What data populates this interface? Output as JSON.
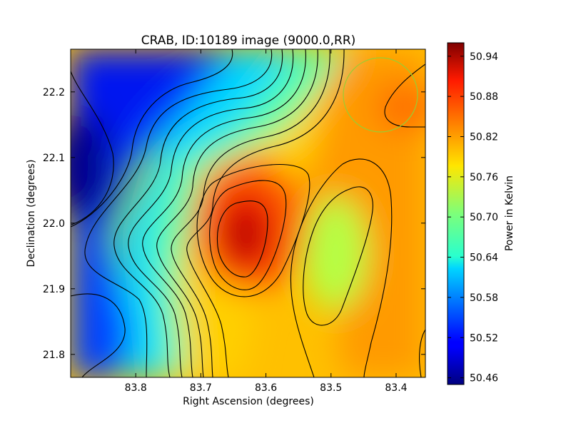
{
  "chart_data": {
    "type": "heatmap",
    "title": "CRAB, ID:10189 image (9000.0,RR)",
    "xlabel": "Right Ascension (degrees)",
    "ylabel": "Declination (degrees)",
    "colorbar_label": "Power in Kelvin",
    "colormap": "jet",
    "x_range": [
      83.9,
      83.355
    ],
    "y_range": [
      21.765,
      22.265
    ],
    "x_ticks": [
      "83.8",
      "83.7",
      "83.6",
      "83.5",
      "83.4"
    ],
    "y_ticks": [
      "21.8",
      "21.9",
      "22.0",
      "22.1",
      "22.2"
    ],
    "colorbar_range": [
      50.45,
      50.96
    ],
    "colorbar_ticks": [
      "50.46",
      "50.52",
      "50.58",
      "50.64",
      "50.70",
      "50.76",
      "50.82",
      "50.88",
      "50.94"
    ],
    "features": [
      {
        "type": "minimum",
        "x": 83.885,
        "y": 22.075,
        "value": 50.46
      },
      {
        "type": "maximum",
        "x": 83.625,
        "y": 21.975,
        "value": 50.95
      },
      {
        "type": "local-minimum",
        "x": 83.505,
        "y": 21.93,
        "value": 50.72
      },
      {
        "type": "beam-circle",
        "x": 83.42,
        "y": 22.2
      }
    ]
  }
}
